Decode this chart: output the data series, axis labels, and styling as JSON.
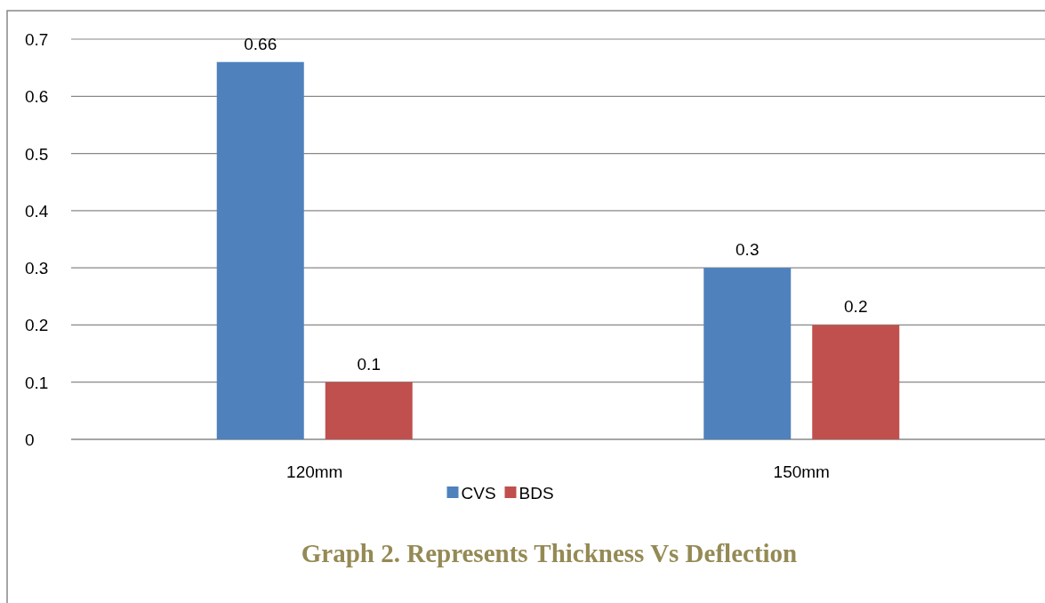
{
  "chart_data": {
    "type": "bar",
    "categories": [
      "120mm",
      "150mm"
    ],
    "series": [
      {
        "name": "CVS",
        "color": "#4f81bd",
        "values": [
          0.66,
          0.3
        ]
      },
      {
        "name": "BDS",
        "color": "#c0504d",
        "values": [
          0.1,
          0.2
        ]
      }
    ],
    "ylim": [
      0,
      0.7
    ],
    "yticks": [
      0,
      0.1,
      0.2,
      0.3,
      0.4,
      0.5,
      0.6,
      0.7
    ],
    "grid": "y",
    "legend": "bottom",
    "data_labels": true,
    "annotations": [
      "Graph 2. Represents Thickness Vs Deflection"
    ]
  }
}
